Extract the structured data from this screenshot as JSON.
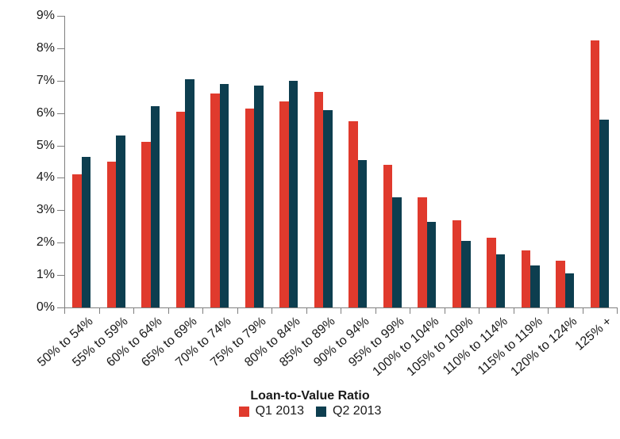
{
  "chart_data": {
    "type": "bar",
    "title": "",
    "xlabel": "Loan-to-Value Ratio",
    "ylabel": "",
    "ylim": [
      0,
      9
    ],
    "y_tick_labels": [
      "0%",
      "1%",
      "2%",
      "3%",
      "4%",
      "5%",
      "6%",
      "7%",
      "8%",
      "9%"
    ],
    "grid": false,
    "legend_position": "bottom-center",
    "categories": [
      "50% to 54%",
      "55% to 59%",
      "60% to 64%",
      "65% to 69%",
      "70% to 74%",
      "75% to 79%",
      "80% to 84%",
      "85% to 89%",
      "90% to 94%",
      "95% to 99%",
      "100% to 104%",
      "105% to 109%",
      "110% to 114%",
      "115% to 119%",
      "120% to 124%",
      "125% +"
    ],
    "series": [
      {
        "name": "Q1 2013",
        "color": "#e03a2d",
        "values": [
          4.1,
          4.5,
          5.1,
          6.05,
          6.6,
          6.15,
          6.35,
          6.65,
          5.75,
          4.4,
          3.4,
          2.7,
          2.15,
          1.75,
          1.45,
          8.25
        ]
      },
      {
        "name": "Q2 2013",
        "color": "#0d3e4f",
        "values": [
          4.65,
          5.3,
          6.2,
          7.05,
          6.9,
          6.85,
          7.0,
          6.1,
          4.55,
          3.4,
          2.65,
          2.05,
          1.65,
          1.3,
          1.05,
          5.8
        ]
      }
    ],
    "axis_color": "#7f7f7f",
    "text_color": "#1a1a1a"
  }
}
